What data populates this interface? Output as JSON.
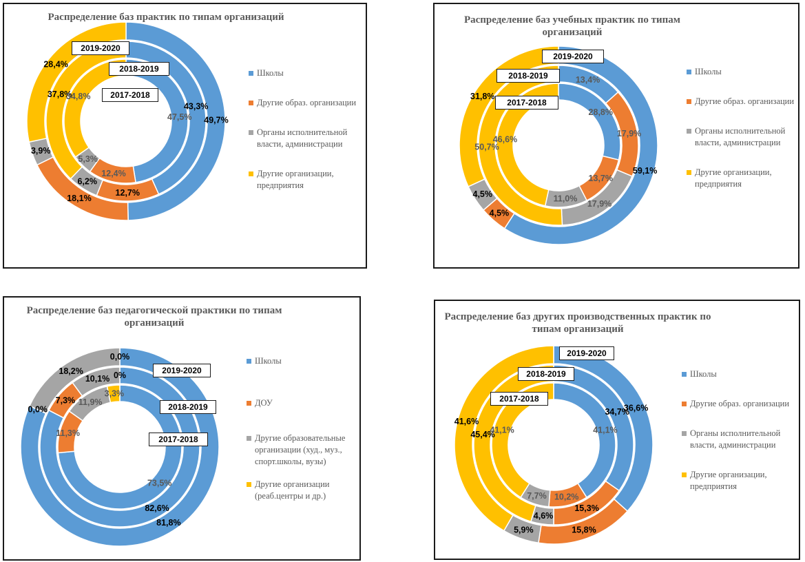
{
  "chart_data": [
    {
      "type": "donut",
      "title": "Распределение баз практик по типам организаций",
      "categories": [
        "Школы",
        "Другие образ. организации",
        "Органы исполнительной власти, администрации",
        "Другие организации, предприятия"
      ],
      "colors": [
        "#5b9bd5",
        "#ed7d31",
        "#a5a5a5",
        "#ffc000"
      ],
      "series": [
        {
          "name": "2019-2020",
          "values": [
            49.7,
            18.1,
            3.9,
            28.4
          ],
          "labels": [
            "49,7%",
            "18,1%",
            "3,9%",
            "28,4%"
          ]
        },
        {
          "name": "2018-2019",
          "values": [
            43.3,
            12.7,
            6.2,
            37.8
          ],
          "labels": [
            "43,3%",
            "12,7%",
            "6,2%",
            "37,8%"
          ]
        },
        {
          "name": "2017-2018",
          "values": [
            47.5,
            12.4,
            5.3,
            34.8
          ],
          "labels": [
            "47,5%",
            "12,4%",
            "5,3%",
            "34,8%"
          ]
        }
      ]
    },
    {
      "type": "donut",
      "title": "Распределение баз учебных практик по типам организаций",
      "categories": [
        "Школы",
        "Другие образ. организации",
        "Органы исполнительной власти, администрации",
        "Другие организации, предприятия"
      ],
      "colors": [
        "#5b9bd5",
        "#ed7d31",
        "#a5a5a5",
        "#ffc000"
      ],
      "series": [
        {
          "name": "2019-2020",
          "values": [
            59.1,
            4.5,
            4.5,
            31.8
          ],
          "labels": [
            "59,1%",
            "4,5%",
            "4,5%",
            "31,8%"
          ]
        },
        {
          "name": "2018-2019",
          "values": [
            13.4,
            17.9,
            17.9,
            50.7
          ],
          "labels": [
            "13,4%",
            "17,9%",
            "17,9%",
            "50,7%"
          ]
        },
        {
          "name": "2017-2018",
          "values": [
            28.8,
            13.7,
            11.0,
            46.6
          ],
          "labels": [
            "28,8%",
            "13,7%",
            "11,0%",
            "46,6%"
          ]
        }
      ]
    },
    {
      "type": "donut",
      "title": "Распределение баз педагогической практики по типам организаций",
      "categories": [
        "Школы",
        "ДОУ",
        "Другие образовательные организации (худ., муз., спорт.школы, вузы)",
        "Другие организации (реаб.центры и др.)"
      ],
      "colors": [
        "#5b9bd5",
        "#ed7d31",
        "#a5a5a5",
        "#ffc000"
      ],
      "series": [
        {
          "name": "2019-2020",
          "values": [
            81.8,
            0.0,
            18.2,
            0.0
          ],
          "labels": [
            "81,8%",
            "0,0%",
            "18,2%",
            "0,0%"
          ]
        },
        {
          "name": "2018-2019",
          "values": [
            82.6,
            7.3,
            10.1,
            0.0
          ],
          "labels": [
            "82,6%",
            "7,3%",
            "10,1%",
            "0%"
          ]
        },
        {
          "name": "2017-2018",
          "values": [
            73.5,
            11.3,
            11.9,
            3.3
          ],
          "labels": [
            "73,5%",
            "11,3%",
            "11,9%",
            "3,3%"
          ]
        }
      ]
    },
    {
      "type": "donut",
      "title": "Распределение баз других производственных практик по типам организаций",
      "categories": [
        "Школы",
        "Другие образ. организации",
        "Органы исполнительной власти, администрации",
        "Другие организации, предприятия"
      ],
      "colors": [
        "#5b9bd5",
        "#ed7d31",
        "#a5a5a5",
        "#ffc000"
      ],
      "series": [
        {
          "name": "2019-2020",
          "values": [
            36.6,
            15.8,
            5.9,
            41.6
          ],
          "labels": [
            "36,6%",
            "15,8%",
            "5,9%",
            "41,6%"
          ]
        },
        {
          "name": "2018-2019",
          "values": [
            34.7,
            15.3,
            4.6,
            45.4
          ],
          "labels": [
            "34,7%",
            "15,3%",
            "4,6%",
            "45,4%"
          ]
        },
        {
          "name": "2017-2018",
          "values": [
            41.1,
            10.2,
            7.7,
            41.1
          ],
          "labels": [
            "41,1%",
            "10,2%",
            "7,7%",
            "41,1%"
          ]
        }
      ]
    }
  ]
}
